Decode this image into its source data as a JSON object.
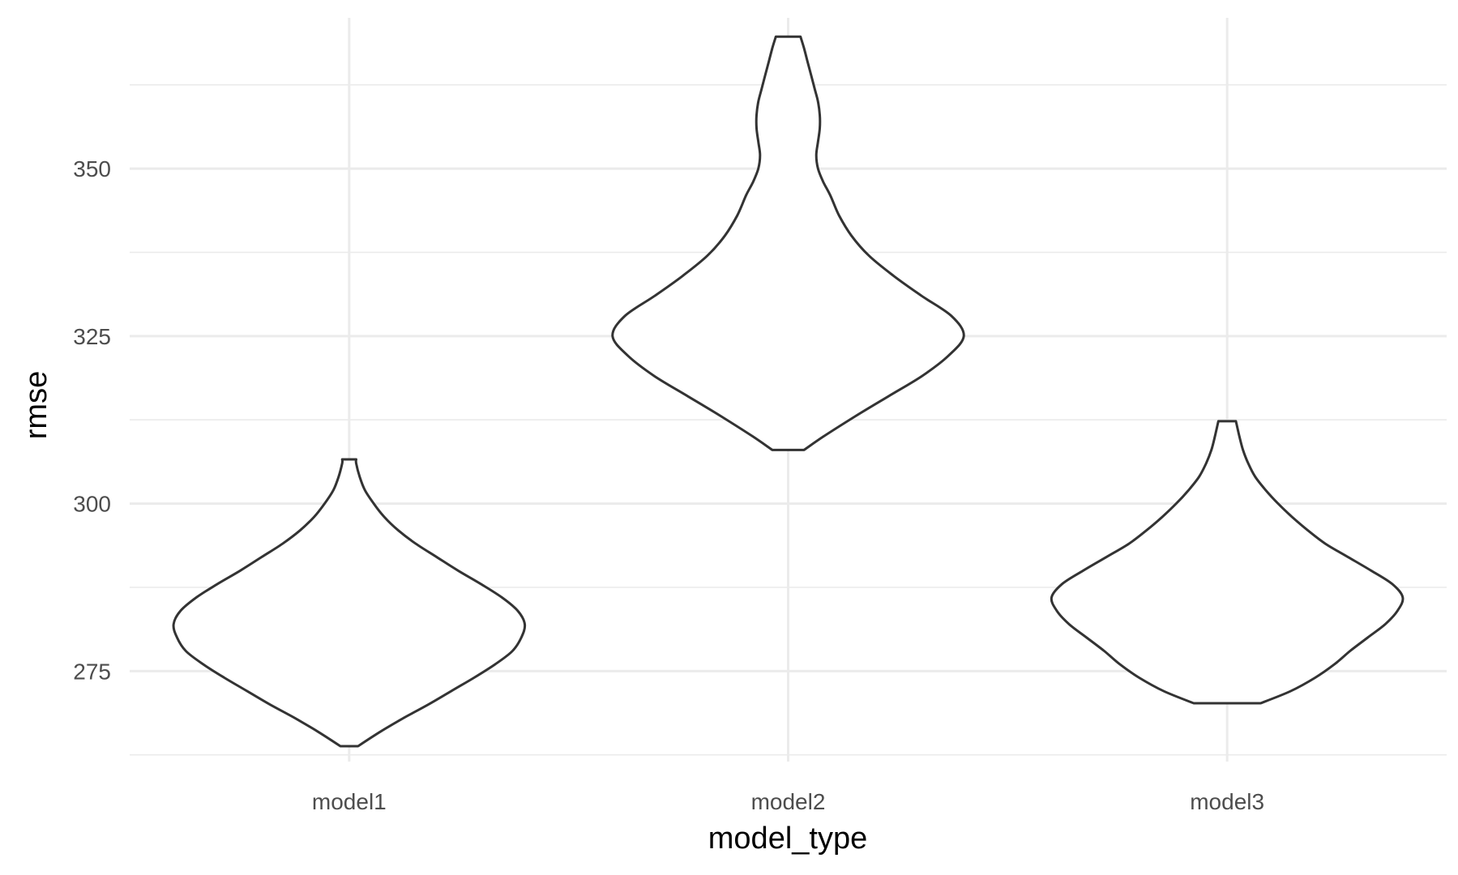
{
  "chart_data": {
    "type": "violin",
    "title": "",
    "xlabel": "model_type",
    "ylabel": "rmse",
    "categories": [
      "model1",
      "model2",
      "model3"
    ],
    "ylim": [
      261.5,
      372.5
    ],
    "y_ticks": [
      275,
      300,
      325,
      350
    ],
    "y_tick_labels": [
      "275",
      "300",
      "325",
      "350"
    ],
    "grid": true,
    "legend": "none",
    "series": [
      {
        "category": "model1",
        "min": 263.8,
        "max": 306.6,
        "profile": [
          [
            263.8,
            0.05
          ],
          [
            266,
            0.18
          ],
          [
            268,
            0.31
          ],
          [
            270,
            0.45
          ],
          [
            272,
            0.58
          ],
          [
            274,
            0.71
          ],
          [
            276,
            0.83
          ],
          [
            278,
            0.93
          ],
          [
            280,
            0.98
          ],
          [
            282,
            1.0
          ],
          [
            284,
            0.96
          ],
          [
            286,
            0.87
          ],
          [
            288,
            0.75
          ],
          [
            290,
            0.62
          ],
          [
            292,
            0.5
          ],
          [
            294,
            0.38
          ],
          [
            296,
            0.28
          ],
          [
            298,
            0.2
          ],
          [
            300,
            0.14
          ],
          [
            302,
            0.09
          ],
          [
            304,
            0.06
          ],
          [
            306,
            0.04
          ],
          [
            306.6,
            0.04
          ]
        ]
      },
      {
        "category": "model2",
        "min": 308,
        "max": 369.7,
        "profile": [
          [
            308,
            0.09
          ],
          [
            310,
            0.2
          ],
          [
            313,
            0.38
          ],
          [
            316,
            0.57
          ],
          [
            319,
            0.76
          ],
          [
            322,
            0.91
          ],
          [
            325,
            1.0
          ],
          [
            328,
            0.93
          ],
          [
            331,
            0.76
          ],
          [
            334,
            0.6
          ],
          [
            337,
            0.46
          ],
          [
            340,
            0.36
          ],
          [
            343,
            0.29
          ],
          [
            346,
            0.24
          ],
          [
            348,
            0.2
          ],
          [
            350,
            0.17
          ],
          [
            352,
            0.16
          ],
          [
            354,
            0.17
          ],
          [
            356,
            0.18
          ],
          [
            358,
            0.18
          ],
          [
            360,
            0.17
          ],
          [
            362,
            0.15
          ],
          [
            364,
            0.13
          ],
          [
            366,
            0.11
          ],
          [
            368,
            0.09
          ],
          [
            369.7,
            0.07
          ]
        ]
      },
      {
        "category": "model3",
        "min": 270.2,
        "max": 312.3,
        "profile": [
          [
            270.2,
            0.19
          ],
          [
            272,
            0.36
          ],
          [
            274,
            0.5
          ],
          [
            276,
            0.61
          ],
          [
            278,
            0.7
          ],
          [
            280,
            0.8
          ],
          [
            282,
            0.9
          ],
          [
            284,
            0.97
          ],
          [
            286,
            1.0
          ],
          [
            288,
            0.94
          ],
          [
            290,
            0.82
          ],
          [
            292,
            0.69
          ],
          [
            294,
            0.56
          ],
          [
            296,
            0.46
          ],
          [
            298,
            0.37
          ],
          [
            300,
            0.29
          ],
          [
            302,
            0.22
          ],
          [
            304,
            0.16
          ],
          [
            306,
            0.12
          ],
          [
            308,
            0.09
          ],
          [
            310,
            0.07
          ],
          [
            312.3,
            0.05
          ]
        ]
      }
    ]
  }
}
